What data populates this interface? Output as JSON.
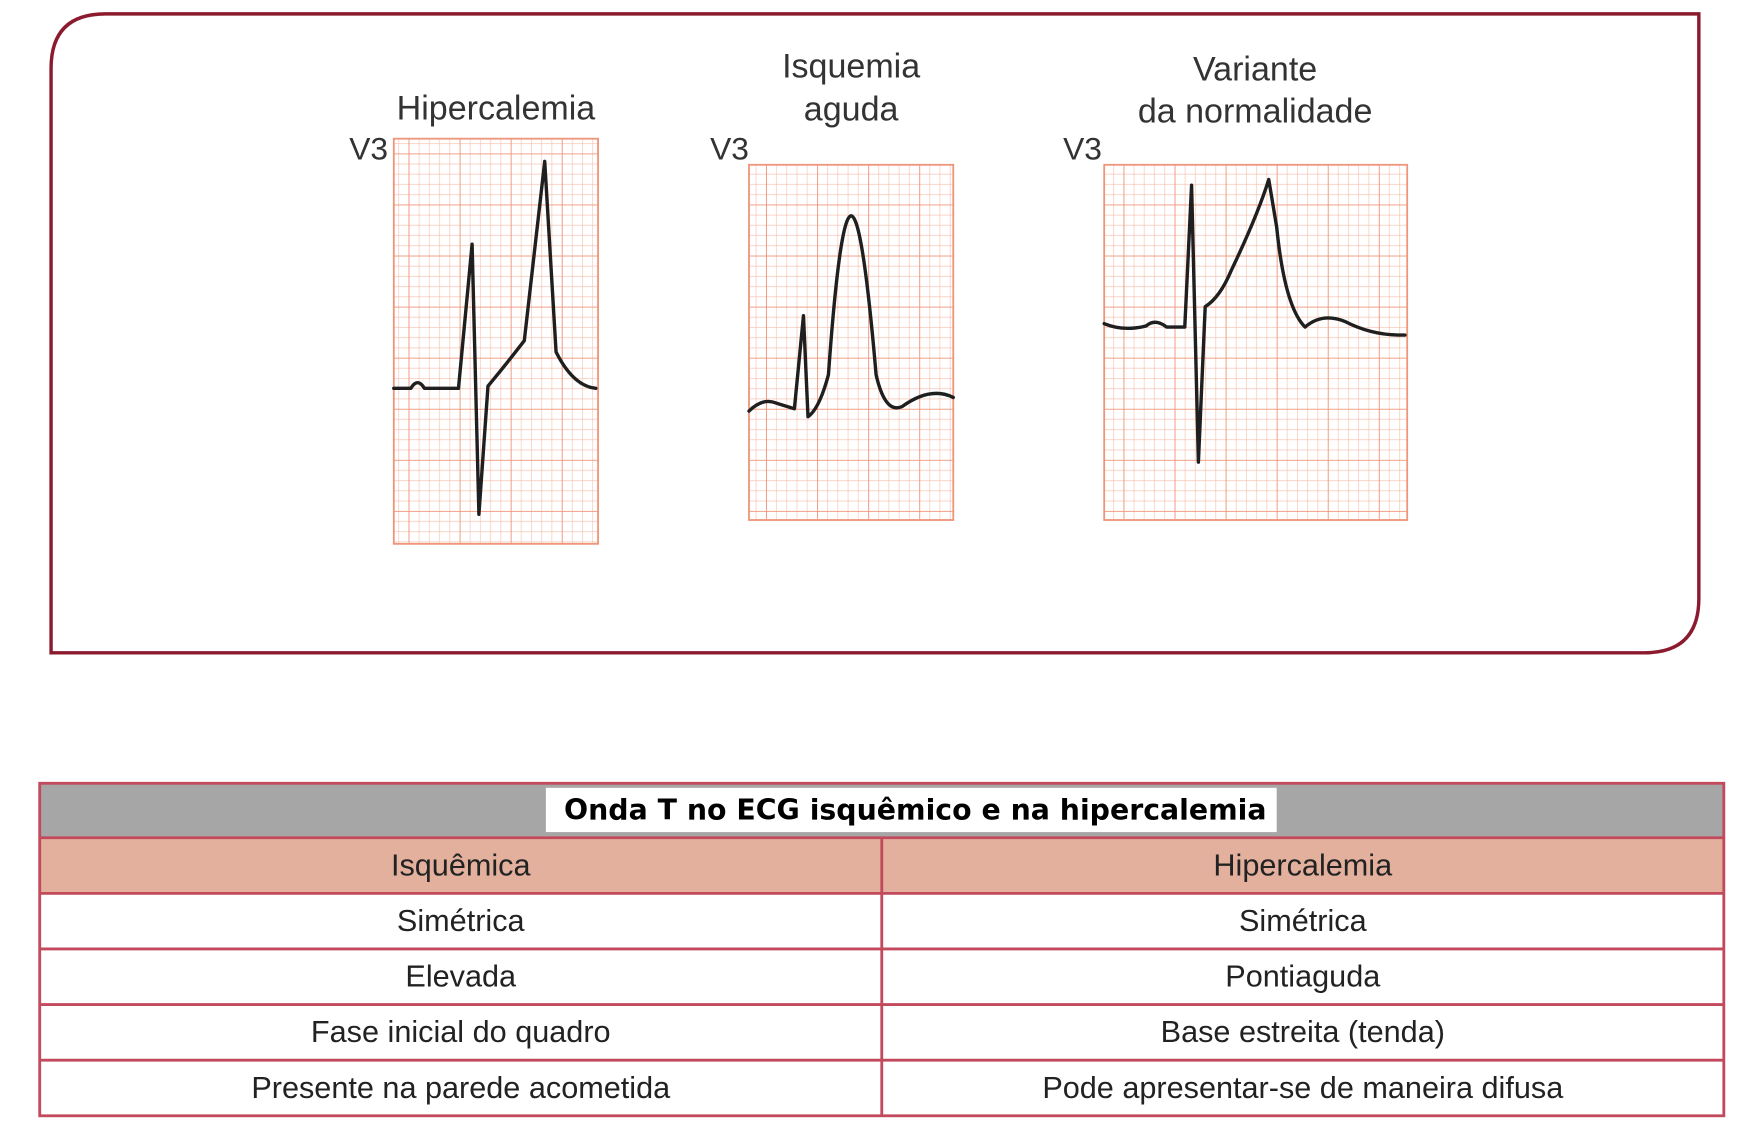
{
  "figure": {
    "panels": [
      {
        "title": [
          "Hipercalemia"
        ],
        "lead": "V3"
      },
      {
        "title": [
          "Isquemia",
          "aguda"
        ],
        "lead": "V3"
      },
      {
        "title": [
          "Variante",
          "da normalidade"
        ],
        "lead": "V3"
      }
    ]
  },
  "table": {
    "title": "Onda T no ECG isquêmico e na hipercalemia",
    "header": [
      "Isquêmica",
      "Hipercalemia"
    ],
    "rows": [
      [
        "Simétrica",
        "Simétrica"
      ],
      [
        "Elevada",
        "Pontiaguda"
      ],
      [
        "Fase inicial do quadro",
        "Base estreita (tenda)"
      ],
      [
        "Presente na parede acometida",
        "Pode apresentar-se de maneira difusa"
      ]
    ]
  }
}
